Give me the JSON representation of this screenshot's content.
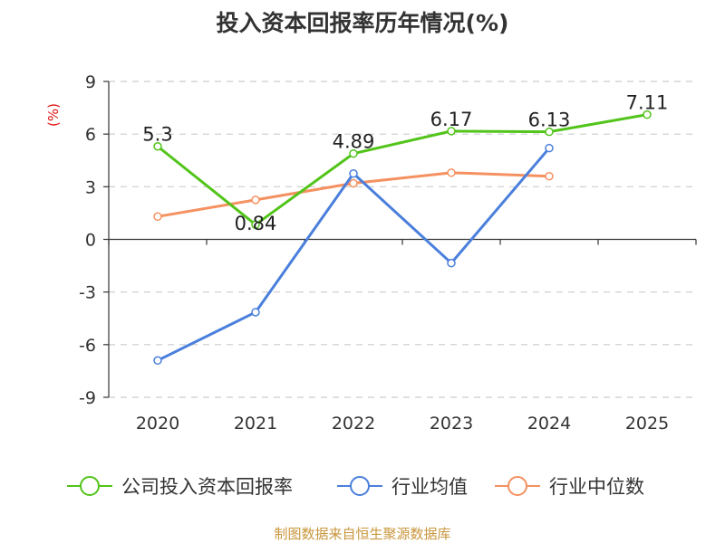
{
  "chart_data": {
    "type": "line",
    "title": "投入资本回报率历年情况(%)",
    "ylabel": "(%)",
    "xlabel": "",
    "categories": [
      "2020",
      "2021",
      "2022",
      "2023",
      "2024",
      "2025"
    ],
    "ylim": [
      -9,
      9
    ],
    "yticks": [
      9,
      6,
      3,
      0,
      -3,
      -6,
      -9
    ],
    "grid": true,
    "legend_position": "bottom",
    "series": [
      {
        "name": "公司投入资本回报率",
        "color": "#52c41a",
        "values": [
          5.3,
          0.84,
          4.89,
          6.17,
          6.13,
          7.11
        ],
        "labels": [
          "5.3",
          "0.84",
          "4.89",
          "6.17",
          "6.13",
          "7.11"
        ]
      },
      {
        "name": "行业均值",
        "color": "#4a7fdc",
        "values": [
          -6.9,
          -4.15,
          3.75,
          -1.35,
          5.2,
          null
        ]
      },
      {
        "name": "行业中位数",
        "color": "#f59160",
        "values": [
          1.3,
          2.25,
          3.2,
          3.8,
          3.6,
          null
        ]
      }
    ]
  },
  "footer": {
    "source": "制图数据来自恒生聚源数据库"
  }
}
